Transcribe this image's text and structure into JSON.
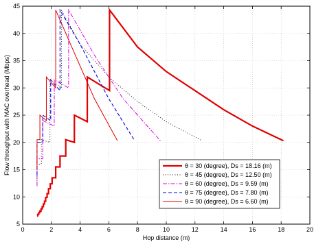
{
  "chart_data": {
    "type": "line",
    "xlabel": "Hop distance (m)",
    "ylabel": "Flow throughput with MAC overhead (Mbps)",
    "xlim": [
      0,
      20
    ],
    "ylim": [
      5,
      45
    ],
    "xticks": [
      "0",
      "2",
      "4",
      "6",
      "8",
      "10",
      "12",
      "14",
      "16",
      "18",
      "20"
    ],
    "yticks": [
      "5",
      "10",
      "15",
      "20",
      "25",
      "30",
      "35",
      "40",
      "45"
    ],
    "grid": true,
    "legend_position": "bottom-right",
    "series": [
      {
        "name": "θ = 30 (degree), Ds = 18.16 (m)",
        "color": "#e00000",
        "style": "solid-thick",
        "points": [
          [
            1.0,
            6.5
          ],
          [
            1.05,
            6.5
          ],
          [
            1.05,
            6.8
          ],
          [
            1.12,
            6.8
          ],
          [
            1.12,
            7.1
          ],
          [
            1.2,
            7.1
          ],
          [
            1.2,
            7.4
          ],
          [
            1.28,
            7.4
          ],
          [
            1.28,
            7.8
          ],
          [
            1.36,
            7.8
          ],
          [
            1.36,
            8.2
          ],
          [
            1.44,
            8.2
          ],
          [
            1.44,
            8.7
          ],
          [
            1.52,
            8.7
          ],
          [
            1.52,
            9.2
          ],
          [
            1.6,
            9.2
          ],
          [
            1.6,
            9.9
          ],
          [
            1.7,
            9.9
          ],
          [
            1.7,
            10.6
          ],
          [
            1.8,
            10.6
          ],
          [
            1.8,
            11.5
          ],
          [
            1.92,
            11.5
          ],
          [
            1.92,
            12.4
          ],
          [
            2.05,
            12.4
          ],
          [
            2.05,
            13.5
          ],
          [
            2.3,
            13.5
          ],
          [
            2.3,
            15.5
          ],
          [
            2.6,
            15.5
          ],
          [
            2.6,
            17.5
          ],
          [
            3.0,
            17.5
          ],
          [
            3.0,
            20.5
          ],
          [
            3.6,
            20.0
          ],
          [
            3.6,
            25.0
          ],
          [
            4.5,
            23.8
          ],
          [
            4.5,
            32.0
          ],
          [
            6.05,
            29.5
          ],
          [
            6.05,
            44.3
          ],
          [
            8,
            37.5
          ],
          [
            10,
            33.0
          ],
          [
            12,
            29.5
          ],
          [
            14,
            26.0
          ],
          [
            16,
            23.0
          ],
          [
            18.16,
            20.3
          ]
        ]
      },
      {
        "name": "θ = 45 (degree), Ds = 12.50 (m)",
        "color": "#000000",
        "style": "dotted",
        "points": [
          [
            1.0,
            12.0
          ],
          [
            1.0,
            16.0
          ],
          [
            1.3,
            16.0
          ],
          [
            1.3,
            20.5
          ],
          [
            1.9,
            20.0
          ],
          [
            1.9,
            31.5
          ],
          [
            2.7,
            30.0
          ],
          [
            2.7,
            44.3
          ],
          [
            4,
            38.0
          ],
          [
            6,
            32.0
          ],
          [
            8,
            27.5
          ],
          [
            10,
            23.8
          ],
          [
            12.5,
            20.3
          ]
        ]
      },
      {
        "name": "θ = 60 (degree), Ds = 9.59 (m)",
        "color": "#e000e0",
        "style": "dashdot",
        "points": [
          [
            1.0,
            12.0
          ],
          [
            1.0,
            17.0
          ],
          [
            1.4,
            17.0
          ],
          [
            1.4,
            24.0
          ],
          [
            2.2,
            23.0
          ],
          [
            2.2,
            31.5
          ],
          [
            3.2,
            30.0
          ],
          [
            3.2,
            44.3
          ],
          [
            5,
            36.0
          ],
          [
            7,
            28.0
          ],
          [
            9.59,
            20.3
          ]
        ]
      },
      {
        "name": "θ = 75 (degree), Ds = 7.80 (m)",
        "color": "#0000e0",
        "style": "dashed",
        "points": [
          [
            1.0,
            14.0
          ],
          [
            1.0,
            20.0
          ],
          [
            1.4,
            20.0
          ],
          [
            1.4,
            25.0
          ],
          [
            1.95,
            24.0
          ],
          [
            1.95,
            31.5
          ],
          [
            2.6,
            29.5
          ],
          [
            2.6,
            44.3
          ],
          [
            4,
            38.0
          ],
          [
            6,
            28.0
          ],
          [
            7.8,
            20.3
          ]
        ]
      },
      {
        "name": "θ = 90 (degree), Ds = 6.60 (m)",
        "color": "#e00000",
        "style": "solid-thin",
        "points": [
          [
            1.0,
            15.0
          ],
          [
            1.0,
            20.5
          ],
          [
            1.2,
            20.5
          ],
          [
            1.2,
            25.0
          ],
          [
            1.65,
            24.0
          ],
          [
            1.65,
            32.0
          ],
          [
            2.3,
            30.0
          ],
          [
            2.3,
            44.3
          ],
          [
            3.5,
            37.0
          ],
          [
            5,
            28.0
          ],
          [
            6.6,
            20.3
          ]
        ]
      }
    ]
  }
}
